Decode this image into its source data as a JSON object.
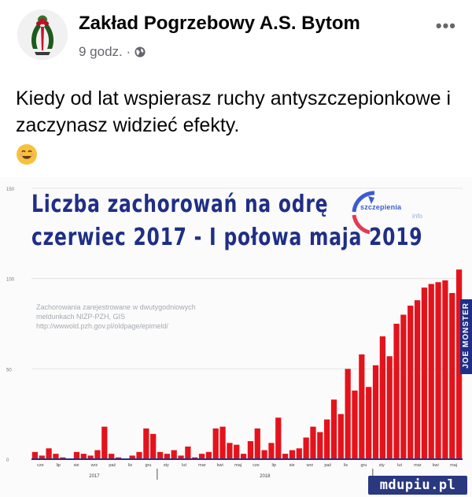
{
  "post": {
    "page_name": "Zakład Pogrzebowy A.S. Bytom",
    "time": "9 godz. ·",
    "privacy_icon": "globe-icon",
    "more_label": "•••",
    "text": "Kiedy od lat wspierasz ruchy antyszczepionkowe i zaczynasz widzieć efekty.",
    "emoji": "smiling-face-icon"
  },
  "chart_data": {
    "type": "bar",
    "title_line1": "Liczba zachorowań na odrę",
    "title_line2": "czerwiec 2017 - I połowa maja 2019",
    "source": [
      "Zachorowania zarejestrowane w dwutygodniowych",
      "meldunkach NIZP-PZH, GIS",
      "http://wwwold.pzh.gov.pl/oldpage/epimeld/"
    ],
    "y_ticks": [
      "150",
      "100",
      "50",
      "0"
    ],
    "ylim": [
      0,
      150
    ],
    "x_tick_labels": [
      "cze",
      "lip",
      "sie",
      "wrz",
      "paź",
      "lis",
      "gru",
      "sty",
      "lut",
      "mar",
      "kwi",
      "maj",
      "cze",
      "lip",
      "sie",
      "wrz",
      "paź",
      "lis",
      "gru",
      "sty",
      "lut",
      "mar",
      "kwi",
      "maj"
    ],
    "years": [
      "2017",
      "2018"
    ],
    "values": [
      4,
      2,
      6,
      3,
      1,
      0,
      4,
      3,
      2,
      5,
      18,
      3,
      1,
      0,
      2,
      4,
      17,
      14,
      4,
      3,
      5,
      2,
      7,
      1,
      3,
      4,
      17,
      18,
      9,
      8,
      3,
      10,
      17,
      5,
      9,
      23,
      3,
      5,
      6,
      12,
      18,
      15,
      22,
      33,
      25,
      50,
      38,
      58,
      40,
      52,
      68,
      57,
      75,
      80,
      85,
      88,
      95,
      97,
      98,
      99,
      92,
      105
    ],
    "bar_color": "#e4131b",
    "baseline_color": "#1f2f86"
  },
  "branding": {
    "logo_text": "szczepienia",
    "logo_sub": "info",
    "side_banner": "JOE MONSTER",
    "watermark": "mdupiu.pl"
  }
}
